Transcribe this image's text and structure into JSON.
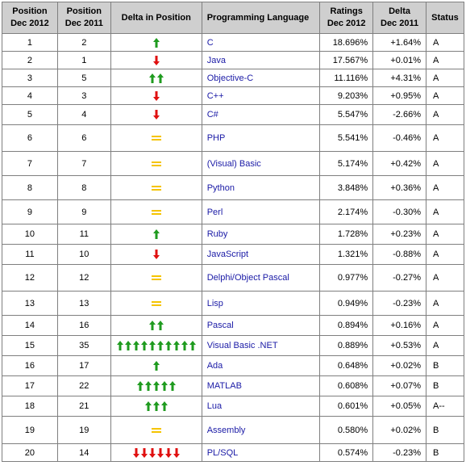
{
  "headers": {
    "pos2012": [
      "Position",
      "Dec 2012"
    ],
    "pos2011": [
      "Position",
      "Dec 2011"
    ],
    "delta_pos": "Delta in Position",
    "language": "Programming Language",
    "ratings": [
      "Ratings",
      "Dec 2012"
    ],
    "delta": [
      "Delta",
      "Dec 2011"
    ],
    "status": "Status"
  },
  "colors": {
    "up_arrow": "#1f9b1f",
    "down_arrow": "#e01010",
    "equal_mark": "#f5c400",
    "link": "#1a1aa6",
    "header_bg": "#cfcfcf"
  },
  "rows": [
    {
      "pos2012": "1",
      "pos2011": "2",
      "move": "up",
      "count": 1,
      "language": "C",
      "rating": "18.696%",
      "delta": "+1.64%",
      "status": "A"
    },
    {
      "pos2012": "2",
      "pos2011": "1",
      "move": "down",
      "count": 1,
      "language": "Java",
      "rating": "17.567%",
      "delta": "+0.01%",
      "status": "A"
    },
    {
      "pos2012": "3",
      "pos2011": "5",
      "move": "up",
      "count": 2,
      "language": "Objective-C",
      "rating": "11.116%",
      "delta": "+4.31%",
      "status": "A"
    },
    {
      "pos2012": "4",
      "pos2011": "3",
      "move": "down",
      "count": 1,
      "language": "C++",
      "rating": "9.203%",
      "delta": "+0.95%",
      "status": "A"
    },
    {
      "pos2012": "5",
      "pos2011": "4",
      "move": "down",
      "count": 1,
      "language": "C#",
      "rating": "5.547%",
      "delta": "-2.66%",
      "status": "A"
    },
    {
      "pos2012": "6",
      "pos2011": "6",
      "move": "equal",
      "count": 1,
      "language": "PHP",
      "rating": "5.541%",
      "delta": "-0.46%",
      "status": "A"
    },
    {
      "pos2012": "7",
      "pos2011": "7",
      "move": "equal",
      "count": 1,
      "language": "(Visual) Basic",
      "rating": "5.174%",
      "delta": "+0.42%",
      "status": "A"
    },
    {
      "pos2012": "8",
      "pos2011": "8",
      "move": "equal",
      "count": 1,
      "language": "Python",
      "rating": "3.848%",
      "delta": "+0.36%",
      "status": "A"
    },
    {
      "pos2012": "9",
      "pos2011": "9",
      "move": "equal",
      "count": 1,
      "language": "Perl",
      "rating": "2.174%",
      "delta": "-0.30%",
      "status": "A"
    },
    {
      "pos2012": "10",
      "pos2011": "11",
      "move": "up",
      "count": 1,
      "language": "Ruby",
      "rating": "1.728%",
      "delta": "+0.23%",
      "status": "A"
    },
    {
      "pos2012": "11",
      "pos2011": "10",
      "move": "down",
      "count": 1,
      "language": "JavaScript",
      "rating": "1.321%",
      "delta": "-0.88%",
      "status": "A"
    },
    {
      "pos2012": "12",
      "pos2011": "12",
      "move": "equal",
      "count": 1,
      "language": "Delphi/Object Pascal",
      "rating": "0.977%",
      "delta": "-0.27%",
      "status": "A"
    },
    {
      "pos2012": "13",
      "pos2011": "13",
      "move": "equal",
      "count": 1,
      "language": "Lisp",
      "rating": "0.949%",
      "delta": "-0.23%",
      "status": "A"
    },
    {
      "pos2012": "14",
      "pos2011": "16",
      "move": "up",
      "count": 2,
      "language": "Pascal",
      "rating": "0.894%",
      "delta": "+0.16%",
      "status": "A"
    },
    {
      "pos2012": "15",
      "pos2011": "35",
      "move": "up",
      "count": 10,
      "language": "Visual Basic .NET",
      "rating": "0.889%",
      "delta": "+0.53%",
      "status": "A"
    },
    {
      "pos2012": "16",
      "pos2011": "17",
      "move": "up",
      "count": 1,
      "language": "Ada",
      "rating": "0.648%",
      "delta": "+0.02%",
      "status": "B"
    },
    {
      "pos2012": "17",
      "pos2011": "22",
      "move": "up",
      "count": 5,
      "language": "MATLAB",
      "rating": "0.608%",
      "delta": "+0.07%",
      "status": "B"
    },
    {
      "pos2012": "18",
      "pos2011": "21",
      "move": "up",
      "count": 3,
      "language": "Lua",
      "rating": "0.601%",
      "delta": "+0.05%",
      "status": "A--"
    },
    {
      "pos2012": "19",
      "pos2011": "19",
      "move": "equal",
      "count": 1,
      "language": "Assembly",
      "rating": "0.580%",
      "delta": "+0.02%",
      "status": "B"
    },
    {
      "pos2012": "20",
      "pos2011": "14",
      "move": "down",
      "count": 6,
      "language": "PL/SQL",
      "rating": "0.574%",
      "delta": "-0.23%",
      "status": "B"
    }
  ]
}
